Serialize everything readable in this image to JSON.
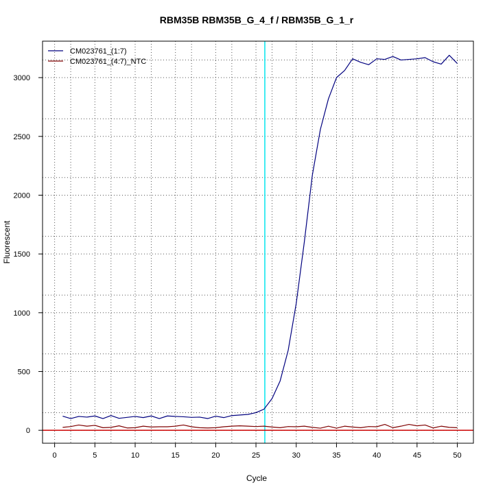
{
  "chart_data": {
    "type": "line",
    "title": "RBM35B  RBM35B_G_4_f / RBM35B_G_1_r",
    "xlabel": "Cycle",
    "ylabel": "Fluorescent",
    "xlim": [
      -1.5,
      52
    ],
    "ylim": [
      -110,
      3310
    ],
    "x_ticks": [
      0,
      5,
      10,
      15,
      20,
      25,
      30,
      35,
      40,
      45,
      50
    ],
    "y_ticks": [
      0,
      500,
      1000,
      1500,
      2000,
      2500,
      3000
    ],
    "x_grid": [
      0,
      2,
      5,
      7,
      10,
      12,
      15,
      17,
      20,
      22,
      25,
      27,
      30,
      32,
      35,
      37,
      40,
      42,
      45,
      47,
      50
    ],
    "y_grid": [
      0,
      150,
      500,
      650,
      1000,
      1150,
      1500,
      1650,
      2000,
      2150,
      2500,
      2650,
      3000,
      3150
    ],
    "grid": true,
    "legend_position": "top-left",
    "threshold": {
      "y": 0,
      "color": "#cc0000"
    },
    "cycle_marker": {
      "x": 26.1,
      "color": "#00e5ee"
    },
    "x": [
      1,
      2,
      3,
      4,
      5,
      6,
      7,
      8,
      9,
      10,
      11,
      12,
      13,
      14,
      15,
      16,
      17,
      18,
      19,
      20,
      21,
      22,
      23,
      24,
      25,
      26,
      27,
      28,
      29,
      30,
      31,
      32,
      33,
      34,
      35,
      36,
      37,
      38,
      39,
      40,
      41,
      42,
      43,
      44,
      45,
      46,
      47,
      48,
      49,
      50
    ],
    "series": [
      {
        "name": "CM023761_(1:7)",
        "color": "#00007f",
        "values": [
          120,
          100,
          118,
          112,
          122,
          100,
          125,
          102,
          110,
          118,
          108,
          122,
          100,
          122,
          118,
          115,
          110,
          112,
          100,
          120,
          108,
          125,
          130,
          135,
          150,
          180,
          270,
          420,
          680,
          1080,
          1600,
          2170,
          2560,
          2820,
          3000,
          3060,
          3160,
          3130,
          3110,
          3160,
          3155,
          3180,
          3150,
          3155,
          3160,
          3170,
          3135,
          3115,
          3190,
          3120
        ]
      },
      {
        "name": "CM023761_(4:7)_NTC",
        "color": "#7f0000",
        "values": [
          25,
          32,
          45,
          35,
          42,
          22,
          25,
          38,
          20,
          22,
          35,
          28,
          30,
          30,
          35,
          45,
          30,
          22,
          20,
          22,
          30,
          35,
          38,
          35,
          32,
          35,
          28,
          22,
          32,
          30,
          35,
          25,
          18,
          35,
          18,
          35,
          28,
          22,
          32,
          30,
          50,
          22,
          35,
          50,
          38,
          45,
          20,
          35,
          25,
          22
        ]
      }
    ]
  }
}
